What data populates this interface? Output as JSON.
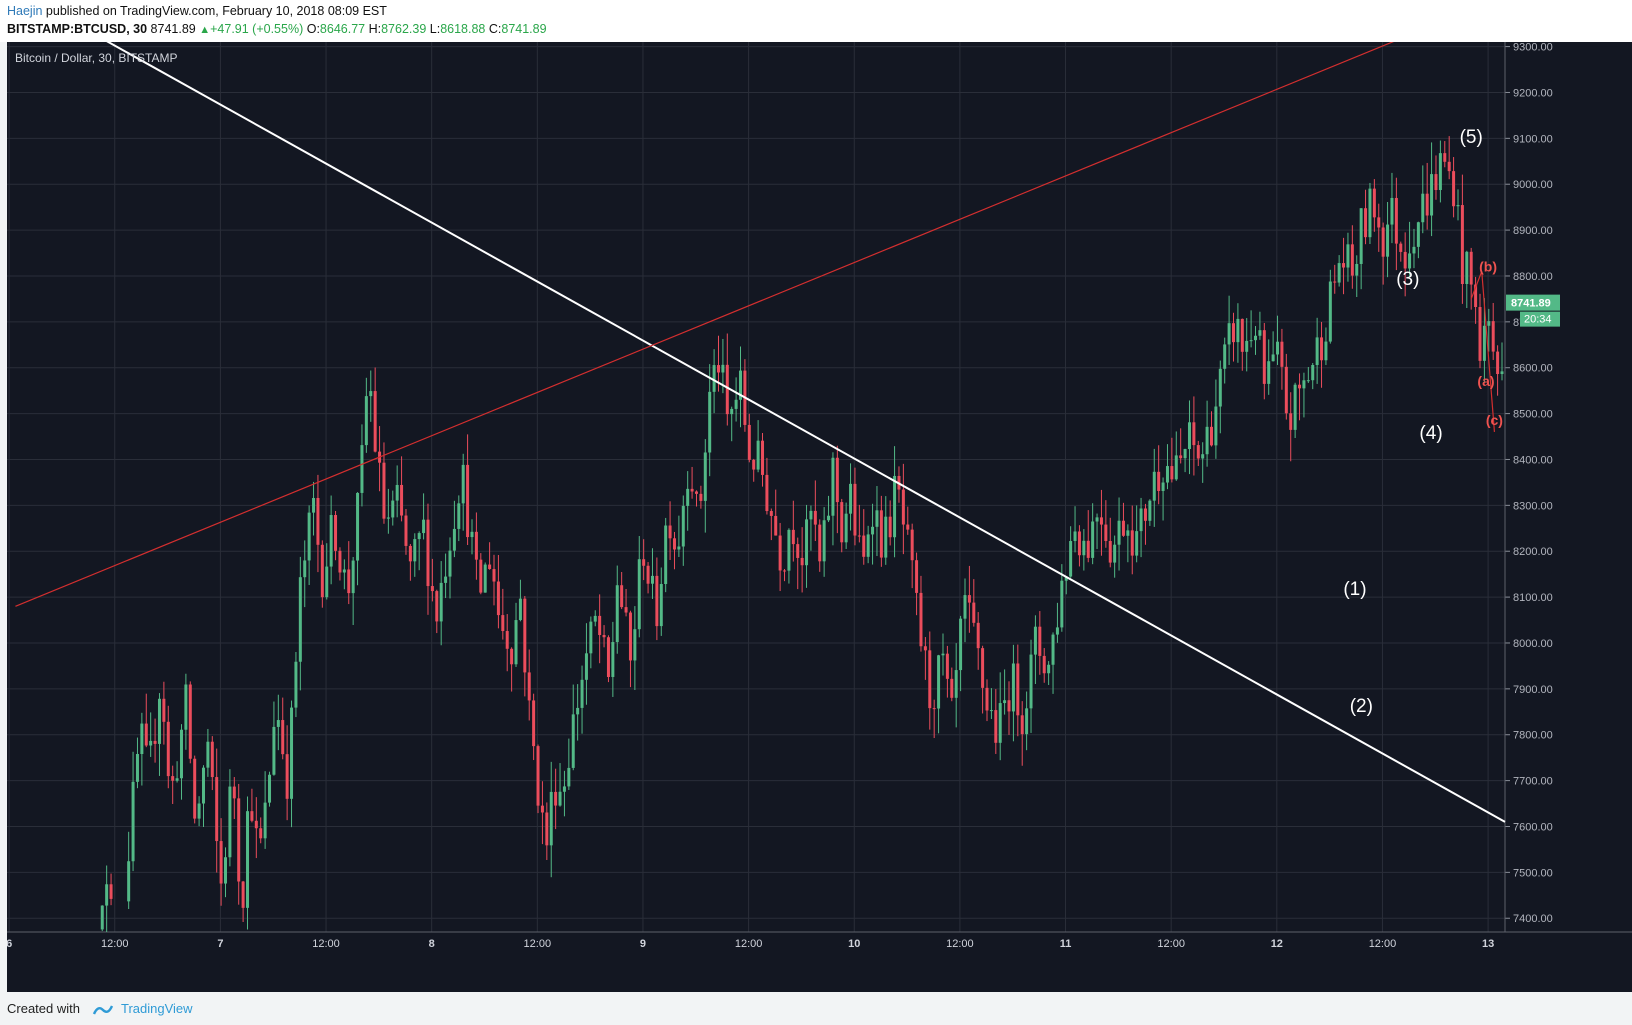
{
  "header": {
    "author": "Haejin",
    "published_text": "published on TradingView.com, February 10, 2018 08:09 EST",
    "symbol": "BITSTAMP:BTCUSD, 30",
    "last": "8741.89",
    "change": "+47.91 (+0.55%)",
    "o_label": "O:",
    "o_value": "8646.77",
    "h_label": "H:",
    "h_value": "8762.39",
    "l_label": "L:",
    "l_value": "8618.88",
    "c_label": "C:",
    "c_value": "8741.89"
  },
  "footer": {
    "created_with": "Created with",
    "brand": "TradingView"
  },
  "colors": {
    "background": "#131722",
    "grid": "#2a2e39",
    "up": "#53b987",
    "down": "#eb4d5c",
    "trend_white": "#ffffff",
    "trend_red": "#d32f2f",
    "label_red": "#ef5350",
    "price_tag": "#53b987"
  },
  "chart_data": {
    "type": "candlestick",
    "title": "Bitcoin / Dollar, 30, BITSTAMP",
    "x_ticks": [
      "6",
      "12:00",
      "7",
      "12:00",
      "8",
      "12:00",
      "9",
      "12:00",
      "10",
      "12:00",
      "11",
      "12:00",
      "12",
      "12:00",
      "13"
    ],
    "y_ticks": [
      "9300.00",
      "9200.00",
      "9100.00",
      "9000.00",
      "8900.00",
      "8800.00",
      "8700.00",
      "8600.00",
      "8500.00",
      "8400.00",
      "8300.00",
      "8200.00",
      "8100.00",
      "8000.00",
      "7900.00",
      "7800.00",
      "7700.00",
      "7600.00",
      "7500.00",
      "7400.00"
    ],
    "ylim": [
      7370,
      9310
    ],
    "x_range_days": [
      5.99,
      13.08
    ],
    "last_price": "8741.89",
    "countdown": "20:34",
    "price_path": [
      [
        6.42,
        7420
      ],
      [
        6.44,
        7480
      ],
      [
        6.52,
        7350
      ],
      [
        6.62,
        7800
      ],
      [
        6.66,
        7700
      ],
      [
        6.72,
        7940
      ],
      [
        6.76,
        7650
      ],
      [
        6.84,
        7870
      ],
      [
        6.88,
        7600
      ],
      [
        6.94,
        7780
      ],
      [
        7.0,
        7460
      ],
      [
        7.06,
        7720
      ],
      [
        7.1,
        7420
      ],
      [
        7.14,
        7700
      ],
      [
        7.18,
        7520
      ],
      [
        7.22,
        7650
      ],
      [
        7.26,
        7880
      ],
      [
        7.32,
        7700
      ],
      [
        7.38,
        8120
      ],
      [
        7.44,
        8300
      ],
      [
        7.48,
        8150
      ],
      [
        7.54,
        8260
      ],
      [
        7.6,
        8100
      ],
      [
        7.66,
        8320
      ],
      [
        7.7,
        8600
      ],
      [
        7.74,
        8400
      ],
      [
        7.78,
        8260
      ],
      [
        7.84,
        8300
      ],
      [
        7.9,
        8150
      ],
      [
        7.96,
        8250
      ],
      [
        8.02,
        8060
      ],
      [
        8.08,
        8220
      ],
      [
        8.14,
        8380
      ],
      [
        8.18,
        8250
      ],
      [
        8.22,
        8100
      ],
      [
        8.28,
        8200
      ],
      [
        8.32,
        8050
      ],
      [
        8.38,
        8000
      ],
      [
        8.42,
        8100
      ],
      [
        8.46,
        7850
      ],
      [
        8.5,
        7700
      ],
      [
        8.54,
        7550
      ],
      [
        8.58,
        7700
      ],
      [
        8.62,
        7680
      ],
      [
        8.66,
        7800
      ],
      [
        8.72,
        7950
      ],
      [
        8.78,
        8050
      ],
      [
        8.84,
        7900
      ],
      [
        8.88,
        8150
      ],
      [
        8.94,
        7950
      ],
      [
        9.0,
        8220
      ],
      [
        9.06,
        8050
      ],
      [
        9.12,
        8300
      ],
      [
        9.16,
        8200
      ],
      [
        9.22,
        8420
      ],
      [
        9.26,
        8250
      ],
      [
        9.32,
        8560
      ],
      [
        9.36,
        8620
      ],
      [
        9.4,
        8480
      ],
      [
        9.46,
        8560
      ],
      [
        9.5,
        8420
      ],
      [
        9.56,
        8380
      ],
      [
        9.6,
        8300
      ],
      [
        9.66,
        8180
      ],
      [
        9.7,
        8280
      ],
      [
        9.76,
        8180
      ],
      [
        9.8,
        8290
      ],
      [
        9.84,
        8150
      ],
      [
        9.9,
        8380
      ],
      [
        9.94,
        8250
      ],
      [
        9.98,
        8320
      ],
      [
        10.04,
        8150
      ],
      [
        10.08,
        8320
      ],
      [
        10.14,
        8210
      ],
      [
        10.2,
        8340
      ],
      [
        10.26,
        8180
      ],
      [
        10.3,
        8050
      ],
      [
        10.36,
        7880
      ],
      [
        10.42,
        7950
      ],
      [
        10.46,
        7820
      ],
      [
        10.52,
        8080
      ],
      [
        10.58,
        7980
      ],
      [
        10.62,
        7880
      ],
      [
        10.68,
        7800
      ],
      [
        10.74,
        7920
      ],
      [
        10.8,
        7850
      ],
      [
        10.86,
        8000
      ],
      [
        10.92,
        7950
      ],
      [
        10.98,
        8120
      ],
      [
        11.04,
        8260
      ],
      [
        11.1,
        8210
      ],
      [
        11.16,
        8310
      ],
      [
        11.22,
        8200
      ],
      [
        11.28,
        8280
      ],
      [
        11.34,
        8220
      ],
      [
        11.4,
        8330
      ],
      [
        11.46,
        8400
      ],
      [
        11.52,
        8360
      ],
      [
        11.58,
        8440
      ],
      [
        11.64,
        8400
      ],
      [
        11.7,
        8500
      ],
      [
        11.76,
        8620
      ],
      [
        11.8,
        8700
      ],
      [
        11.84,
        8640
      ],
      [
        11.9,
        8700
      ],
      [
        11.94,
        8560
      ],
      [
        12.0,
        8620
      ],
      [
        12.06,
        8480
      ],
      [
        12.1,
        8540
      ],
      [
        12.16,
        8600
      ],
      [
        12.2,
        8650
      ],
      [
        12.24,
        8720
      ],
      [
        12.3,
        8840
      ],
      [
        12.36,
        8800
      ],
      [
        12.4,
        8900
      ],
      [
        12.46,
        8960
      ],
      [
        12.5,
        8880
      ],
      [
        12.54,
        8940
      ],
      [
        12.6,
        8850
      ],
      [
        12.64,
        8900
      ],
      [
        12.7,
        8960
      ],
      [
        12.74,
        9000
      ],
      [
        12.78,
        9050
      ],
      [
        12.84,
        9000
      ],
      [
        12.88,
        8820
      ],
      [
        12.92,
        8780
      ],
      [
        12.96,
        8650
      ],
      [
        13.0,
        8700
      ],
      [
        13.04,
        8600
      ],
      [
        13.08,
        8550
      ]
    ],
    "trendlines": [
      {
        "color": "white",
        "from": [
          6.45,
          9315
        ],
        "to": [
          13.08,
          7610
        ]
      },
      {
        "color": "red",
        "from": [
          6.03,
          8080
        ],
        "to": [
          12.6,
          9320
        ]
      },
      {
        "color": "red",
        "from": [
          12.92,
          8750
        ],
        "to": [
          12.97,
          8810
        ]
      },
      {
        "color": "red",
        "from": [
          12.97,
          8810
        ],
        "to": [
          13.03,
          8460
        ]
      }
    ],
    "wave_labels": [
      {
        "text": "(1)",
        "x": 12.37,
        "y": 8105,
        "color": "white"
      },
      {
        "text": "(2)",
        "x": 12.4,
        "y": 7850,
        "color": "white"
      },
      {
        "text": "(3)",
        "x": 12.62,
        "y": 8780,
        "color": "white"
      },
      {
        "text": "(4)",
        "x": 12.73,
        "y": 8445,
        "color": "white"
      },
      {
        "text": "(5)",
        "x": 12.92,
        "y": 9090,
        "color": "white"
      },
      {
        "text": "(a)",
        "x": 12.99,
        "y": 8560,
        "color": "red"
      },
      {
        "text": "(b)",
        "x": 13.0,
        "y": 8810,
        "color": "red"
      },
      {
        "text": "(c)",
        "x": 13.03,
        "y": 8475,
        "color": "red"
      }
    ]
  }
}
